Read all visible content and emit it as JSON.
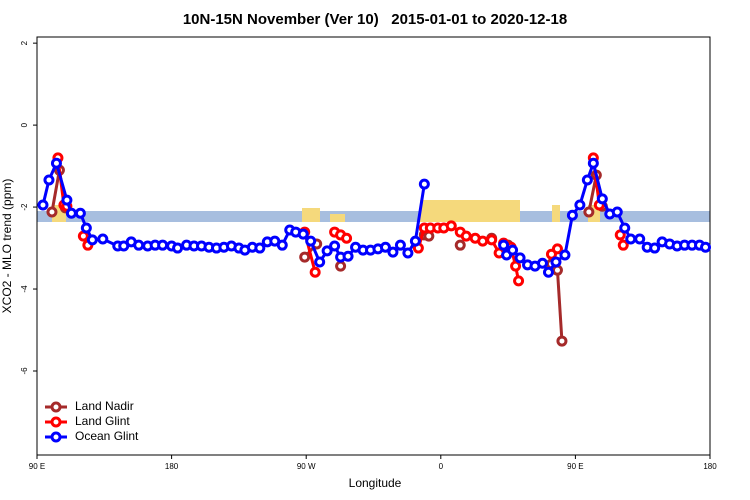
{
  "chart_data": {
    "type": "line",
    "title": "10N-15N November (Ver 10)   2015-01-01 to 2020-12-18",
    "x_label": "Longitude",
    "y_label": "XCO2 - MLO trend (ppm)",
    "xlim": [
      90,
      540
    ],
    "ylim": [
      -8.05,
      2.15
    ],
    "xticks": [
      {
        "value": 90,
        "label": "90 E"
      },
      {
        "value": 180,
        "label": "180"
      },
      {
        "value": 270,
        "label": "90 W"
      },
      {
        "value": 360,
        "label": "0"
      },
      {
        "value": 450,
        "label": "90 E"
      },
      {
        "value": 540,
        "label": "180"
      }
    ],
    "yticks": [
      2,
      0,
      -2,
      -4,
      -6
    ],
    "legend_position": "bottom-left",
    "series": [
      {
        "name": "Land Nadir",
        "color": "#a52a2a",
        "x": [
          100,
          105,
          109,
          null,
          269,
          277,
          null,
          293,
          null,
          349,
          352,
          null,
          373,
          null,
          394,
          null,
          405,
          null,
          434,
          438,
          441,
          null,
          459,
          464,
          468
        ],
        "values": [
          -2.12,
          -1.1,
          -2.02,
          null,
          -3.22,
          -2.9,
          null,
          -3.44,
          null,
          -2.68,
          -2.71,
          null,
          -2.93,
          null,
          -2.76,
          null,
          -2.93,
          null,
          -3.39,
          -3.54,
          -5.27,
          null,
          -2.12,
          -1.22,
          -1.98
        ]
      },
      {
        "name": "Land Glint",
        "color": "#ff0000",
        "x": [
          104,
          108,
          110,
          null,
          121,
          124,
          null,
          269,
          276,
          null,
          289,
          293,
          297,
          null,
          345,
          349,
          353,
          358,
          362,
          367,
          373,
          377,
          383,
          388,
          394,
          399,
          402,
          407,
          410,
          412,
          null,
          434,
          438,
          null,
          462,
          466,
          null,
          480,
          482
        ],
        "values": [
          -0.8,
          -1.95,
          -1.98,
          null,
          -2.71,
          -2.93,
          null,
          -2.61,
          -3.59,
          null,
          -2.61,
          -2.68,
          -2.76,
          null,
          -3.0,
          -2.51,
          -2.51,
          -2.51,
          -2.51,
          -2.46,
          -2.61,
          -2.71,
          -2.76,
          -2.83,
          -2.8,
          -3.12,
          -2.88,
          -2.98,
          -3.44,
          -3.8,
          null,
          -3.15,
          -3.02,
          null,
          -0.8,
          -1.95,
          null,
          -2.68,
          -2.93
        ]
      },
      {
        "name": "Ocean Glint",
        "color": "#0000ff",
        "x": [
          94,
          98,
          103,
          110,
          113,
          119,
          123,
          127,
          134,
          144,
          148,
          153,
          158,
          164,
          169,
          174,
          180,
          184,
          190,
          195,
          200,
          205,
          210,
          215,
          220,
          225,
          229,
          234,
          239,
          244,
          249,
          254,
          259,
          263,
          268,
          273,
          279,
          284,
          289,
          293,
          298,
          303,
          308,
          313,
          318,
          323,
          328,
          333,
          338,
          343,
          349,
          null,
          402,
          404,
          408,
          413,
          418,
          423,
          428,
          432,
          437,
          443,
          448,
          453,
          458,
          462,
          468,
          473,
          478,
          483,
          487,
          493,
          498,
          503,
          508,
          513,
          518,
          523,
          528,
          533,
          537
        ],
        "values": [
          -1.95,
          -1.34,
          -0.93,
          -1.83,
          -2.15,
          -2.15,
          -2.51,
          -2.8,
          -2.78,
          -2.95,
          -2.95,
          -2.85,
          -2.93,
          -2.95,
          -2.93,
          -2.93,
          -2.95,
          -3.0,
          -2.93,
          -2.95,
          -2.95,
          -2.98,
          -3.0,
          -2.98,
          -2.95,
          -3.0,
          -3.05,
          -2.98,
          -3.0,
          -2.85,
          -2.83,
          -2.93,
          -2.56,
          -2.61,
          -2.66,
          -2.83,
          -3.34,
          -3.07,
          -2.95,
          -3.22,
          -3.2,
          -2.98,
          -3.05,
          -3.05,
          -3.02,
          -2.98,
          -3.1,
          -2.93,
          -3.12,
          -2.83,
          -1.44,
          null,
          -2.93,
          -3.17,
          -3.05,
          -3.24,
          -3.41,
          -3.44,
          -3.37,
          -3.59,
          -3.34,
          -3.17,
          -2.2,
          -1.95,
          -1.34,
          -0.93,
          -1.8,
          -2.17,
          -2.12,
          -2.51,
          -2.78,
          -2.78,
          -2.98,
          -3.0,
          -2.85,
          -2.9,
          -2.95,
          -2.93,
          -2.93,
          -2.93,
          -2.98
        ]
      }
    ]
  }
}
